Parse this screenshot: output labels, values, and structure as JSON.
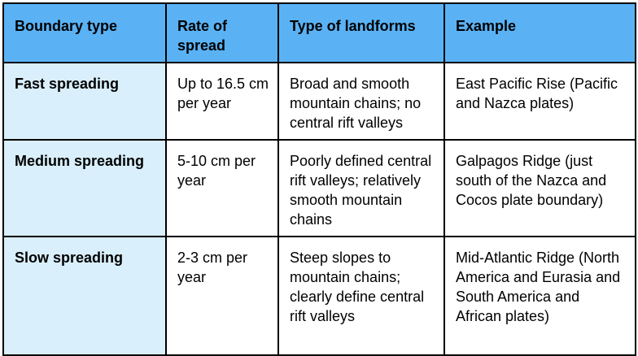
{
  "table": {
    "headers": [
      "Boundary type",
      "Rate of spread",
      "Type of landforms",
      "Example"
    ],
    "rows": [
      {
        "boundary_type": "Fast spreading",
        "rate": "Up to 16.5 cm per year",
        "landforms": "Broad and smooth mountain chains; no central rift valleys",
        "example": "East Pacific Rise (Pacific and Nazca plates)"
      },
      {
        "boundary_type": "Medium spreading",
        "rate": "5-10 cm per year",
        "landforms": "Poorly defined central rift valleys; relatively smooth mountain chains",
        "example": "Galpagos Ridge (just south of the Nazca and Cocos plate boundary)"
      },
      {
        "boundary_type": "Slow spreading",
        "rate": "2-3 cm per year",
        "landforms": "Steep slopes to mountain chains; clearly define central rift valleys",
        "example": "Mid-Atlantic Ridge (North America and Eurasia and South America and African plates)"
      }
    ],
    "colors": {
      "header_bg": "#5ab2f5",
      "rowhead_bg": "#d9effb",
      "border": "#000000"
    }
  }
}
